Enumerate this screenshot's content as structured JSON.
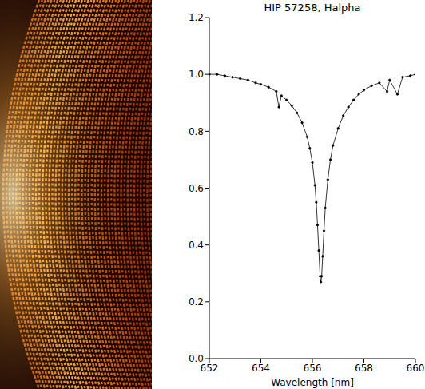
{
  "chart_data": {
    "type": "line",
    "title": "HIP 57258, Halpha",
    "x_label": "Wavelength [nm]",
    "color": "#000000",
    "marker": "dot",
    "xlim": [
      652,
      660
    ],
    "xticks": [
      652,
      654,
      656,
      658,
      660
    ],
    "ylim": [
      0,
      1.2
    ],
    "yticks": [
      {
        "value": 0,
        "label": "0.0"
      },
      0.2,
      0.4,
      0.6,
      0.8,
      {
        "value": 1,
        "label": "1.0"
      },
      1.2
    ],
    "x": [
      652.0,
      652.3,
      652.6,
      652.9,
      653.2,
      653.5,
      653.8,
      654.0,
      654.3,
      654.6,
      654.7,
      654.8,
      655.0,
      655.2,
      655.4,
      655.6,
      655.8,
      655.9,
      656.0,
      656.1,
      656.15,
      656.2,
      656.25,
      656.3,
      656.33,
      656.36,
      656.4,
      656.45,
      656.5,
      656.6,
      656.7,
      656.8,
      657.0,
      657.2,
      657.4,
      657.6,
      657.8,
      658.0,
      658.3,
      658.6,
      658.9,
      659.0,
      659.3,
      659.5,
      659.8,
      660.0
    ],
    "values": [
      1.0,
      1.0,
      0.995,
      0.99,
      0.985,
      0.98,
      0.97,
      0.965,
      0.955,
      0.94,
      0.885,
      0.925,
      0.91,
      0.89,
      0.865,
      0.83,
      0.78,
      0.74,
      0.69,
      0.61,
      0.55,
      0.47,
      0.38,
      0.29,
      0.27,
      0.29,
      0.36,
      0.45,
      0.53,
      0.63,
      0.7,
      0.75,
      0.81,
      0.855,
      0.885,
      0.91,
      0.93,
      0.945,
      0.96,
      0.97,
      0.94,
      0.98,
      0.93,
      0.99,
      0.995,
      1.0
    ]
  }
}
